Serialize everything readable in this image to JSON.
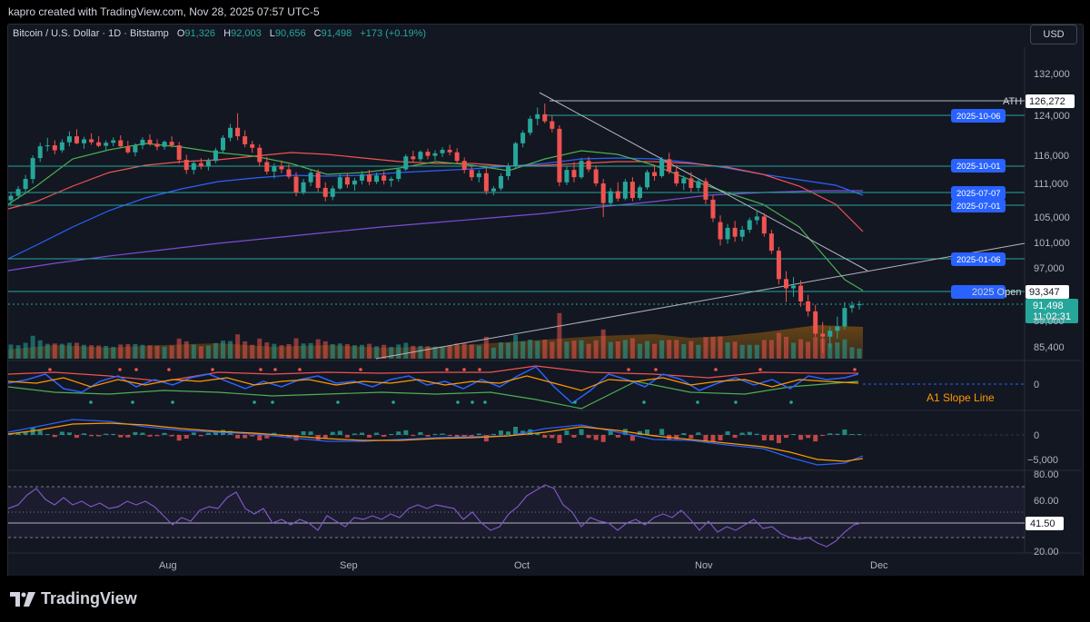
{
  "header": {
    "credit": "kapro created with TradingView.com, Nov 28, 2025 07:57 UTC-5",
    "symbol": "Bitcoin / U.S. Dollar · 1D · Bitstamp",
    "o_label": "O",
    "o": "91,326",
    "h_label": "H",
    "h": "92,003",
    "l_label": "L",
    "l": "90,656",
    "c_label": "C",
    "c": "91,498",
    "change": "+173 (+0.19%)",
    "currency": "USD"
  },
  "footer": {
    "brand": "TradingView"
  },
  "chart_data": {
    "type": "candlestick",
    "price_axis": {
      "ticks": [
        132000,
        124000,
        116000,
        111000,
        105000,
        101000,
        97000,
        89000,
        85400
      ],
      "tick_labels": [
        "132,000",
        "124,000",
        "116,000",
        "111,000",
        "105,000",
        "101,000",
        "97,000",
        "89,000",
        "85,400"
      ]
    },
    "x_axis": {
      "labels": [
        "Aug",
        "Sep",
        "Oct",
        "Nov",
        "Dec"
      ]
    },
    "candles_ohlc": [
      [
        108000,
        109500,
        107000,
        108800
      ],
      [
        108800,
        110500,
        108200,
        110000
      ],
      [
        110000,
        112500,
        109500,
        111800
      ],
      [
        111800,
        116000,
        111000,
        115500
      ],
      [
        115500,
        118500,
        114800,
        117800
      ],
      [
        117800,
        119500,
        116800,
        118000
      ],
      [
        118000,
        119000,
        116200,
        117000
      ],
      [
        117000,
        119200,
        116500,
        118600
      ],
      [
        118600,
        120800,
        117800,
        119800
      ],
      [
        119800,
        121200,
        118200,
        118400
      ],
      [
        118400,
        119700,
        117300,
        119200
      ],
      [
        119200,
        120400,
        118100,
        118600
      ],
      [
        118600,
        119800,
        117600,
        117900
      ],
      [
        117900,
        119000,
        116900,
        118500
      ],
      [
        118500,
        119600,
        117800,
        119000
      ],
      [
        119000,
        120000,
        117500,
        117800
      ],
      [
        117800,
        118900,
        116300,
        116600
      ],
      [
        116600,
        118400,
        115800,
        118000
      ],
      [
        118000,
        119600,
        117200,
        119100
      ],
      [
        119100,
        120200,
        117900,
        118300
      ],
      [
        118300,
        119200,
        117000,
        117700
      ],
      [
        117700,
        119000,
        117100,
        118700
      ],
      [
        118700,
        119800,
        117600,
        118000
      ],
      [
        118000,
        118700,
        114500,
        115200
      ],
      [
        115200,
        116100,
        112700,
        113400
      ],
      [
        113400,
        115100,
        112600,
        114600
      ],
      [
        114600,
        115500,
        113500,
        114000
      ],
      [
        114000,
        115500,
        113300,
        115000
      ],
      [
        115000,
        117500,
        114600,
        117000
      ],
      [
        117000,
        120000,
        116400,
        119500
      ],
      [
        119500,
        122300,
        118800,
        121500
      ],
      [
        121500,
        124400,
        119000,
        119800
      ],
      [
        119800,
        121000,
        117600,
        118200
      ],
      [
        118200,
        118900,
        116500,
        117500
      ],
      [
        117500,
        118200,
        114000,
        114800
      ],
      [
        114800,
        115700,
        112600,
        113100
      ],
      [
        113100,
        114600,
        111900,
        114100
      ],
      [
        114100,
        115100,
        112800,
        113500
      ],
      [
        113500,
        114400,
        111800,
        112200
      ],
      [
        112200,
        113000,
        108700,
        109400
      ],
      [
        109400,
        111800,
        109000,
        111200
      ],
      [
        111200,
        113400,
        110500,
        112900
      ],
      [
        112900,
        113500,
        109500,
        110200
      ],
      [
        110200,
        111200,
        107800,
        108600
      ],
      [
        108600,
        110600,
        108000,
        110100
      ],
      [
        110100,
        112600,
        109800,
        112100
      ],
      [
        112100,
        112800,
        110200,
        110800
      ],
      [
        110800,
        112000,
        109700,
        111500
      ],
      [
        111500,
        113200,
        110800,
        112600
      ],
      [
        112600,
        113400,
        110700,
        111300
      ],
      [
        111300,
        112900,
        110900,
        112400
      ],
      [
        112400,
        113200,
        110800,
        111500
      ],
      [
        111500,
        112200,
        110400,
        111800
      ],
      [
        111800,
        113800,
        111300,
        113500
      ],
      [
        113500,
        116200,
        113200,
        115800
      ],
      [
        115800,
        116900,
        114800,
        115300
      ],
      [
        115300,
        117000,
        114900,
        116700
      ],
      [
        116700,
        117300,
        115300,
        115900
      ],
      [
        115900,
        117000,
        115100,
        116400
      ],
      [
        116400,
        117600,
        115700,
        117100
      ],
      [
        117100,
        118100,
        116000,
        116600
      ],
      [
        116600,
        117400,
        114600,
        115000
      ],
      [
        115000,
        115600,
        112800,
        113400
      ],
      [
        113400,
        114000,
        111500,
        112100
      ],
      [
        112100,
        113400,
        111200,
        112800
      ],
      [
        112800,
        113700,
        109000,
        109600
      ],
      [
        109600,
        110500,
        108900,
        110100
      ],
      [
        110100,
        112800,
        109700,
        112300
      ],
      [
        112300,
        114600,
        111600,
        114000
      ],
      [
        114000,
        118700,
        113500,
        118400
      ],
      [
        118400,
        121000,
        117600,
        120500
      ],
      [
        120500,
        123900,
        120000,
        123300
      ],
      [
        123300,
        125500,
        122000,
        124200
      ],
      [
        124200,
        126272,
        122400,
        122800
      ],
      [
        122800,
        123900,
        120600,
        121300
      ],
      [
        121300,
        122000,
        110500,
        111200
      ],
      [
        111200,
        114000,
        110700,
        113400
      ],
      [
        113400,
        114800,
        111200,
        112100
      ],
      [
        112100,
        115500,
        111800,
        115000
      ],
      [
        115000,
        115700,
        113000,
        113500
      ],
      [
        113500,
        114200,
        110500,
        111000
      ],
      [
        111000,
        111800,
        105000,
        107500
      ],
      [
        107500,
        110200,
        107000,
        109600
      ],
      [
        109600,
        111200,
        107800,
        108300
      ],
      [
        108300,
        111800,
        108000,
        111300
      ],
      [
        111300,
        112100,
        107800,
        108400
      ],
      [
        108400,
        110700,
        108000,
        110300
      ],
      [
        110300,
        113400,
        109900,
        113000
      ],
      [
        113000,
        114200,
        111500,
        112300
      ],
      [
        112300,
        115700,
        112000,
        115300
      ],
      [
        115300,
        116500,
        112700,
        113100
      ],
      [
        113100,
        114300,
        110500,
        111000
      ],
      [
        111000,
        112400,
        109800,
        111900
      ],
      [
        111900,
        113000,
        109500,
        110200
      ],
      [
        110200,
        112000,
        109600,
        111400
      ],
      [
        111400,
        111900,
        107300,
        108100
      ],
      [
        108100,
        108900,
        104200,
        104800
      ],
      [
        104200,
        105300,
        100500,
        101500
      ],
      [
        101500,
        103900,
        100800,
        103300
      ],
      [
        103300,
        104400,
        101100,
        101900
      ],
      [
        101900,
        103600,
        101200,
        103000
      ],
      [
        103000,
        104900,
        102500,
        104500
      ],
      [
        104500,
        106200,
        103800,
        105100
      ],
      [
        105100,
        105700,
        101900,
        102400
      ],
      [
        102400,
        103000,
        99200,
        99700
      ],
      [
        99700,
        100300,
        94500,
        95300
      ],
      [
        95300,
        96500,
        91800,
        93900
      ],
      [
        93900,
        95600,
        92600,
        94300
      ],
      [
        94300,
        95100,
        91100,
        91900
      ],
      [
        91900,
        92900,
        89600,
        90400
      ],
      [
        90400,
        91400,
        86800,
        87200
      ],
      [
        87200,
        88800,
        84600,
        86800
      ],
      [
        86800,
        88100,
        85300,
        87600
      ],
      [
        87600,
        89600,
        86500,
        88200
      ],
      [
        88200,
        91800,
        87800,
        90900
      ],
      [
        90900,
        91900,
        90200,
        91326
      ],
      [
        91326,
        92003,
        90656,
        91498
      ]
    ],
    "horizontal_levels": [
      {
        "label": "ATH",
        "value": "126,272"
      },
      {
        "label": "2025-10-06"
      },
      {
        "label": "2025-10-01"
      },
      {
        "label": "2025-07-07"
      },
      {
        "label": "2025-07-01"
      },
      {
        "label": "2025-01-06"
      },
      {
        "label": "2025 Open",
        "value": "93,347"
      }
    ],
    "last_price": "91,498",
    "countdown": "11:02:31",
    "indicator1": {
      "label": "A1 Slope Line",
      "ticks": [
        "0"
      ]
    },
    "macd": {
      "ticks": [
        "0",
        "−5,000"
      ]
    },
    "rsi": {
      "ticks": [
        "80.00",
        "60.00",
        "20.00"
      ],
      "value": "41.50"
    },
    "colors": {
      "up": "#26a69a",
      "down": "#ef5350",
      "bg": "#131722",
      "level_line": "#26a69a",
      "date_badge": "#2962ff",
      "ath_line": "#b2b5be"
    }
  }
}
